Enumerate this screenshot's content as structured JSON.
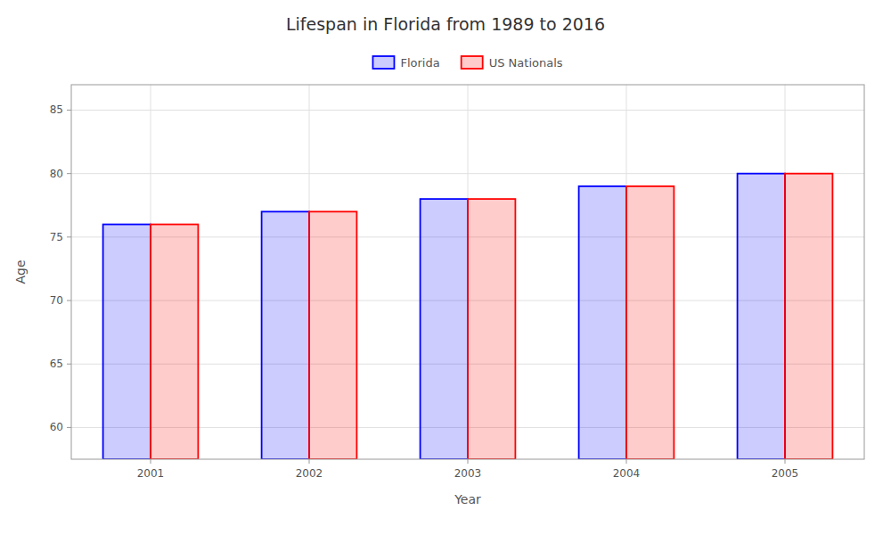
{
  "chart_data": {
    "type": "bar",
    "title": "Lifespan in Florida from 1989 to 2016",
    "xlabel": "Year",
    "ylabel": "Age",
    "categories": [
      "2001",
      "2002",
      "2003",
      "2004",
      "2005"
    ],
    "series": [
      {
        "name": "Florida",
        "color": "#0000ff",
        "values": [
          76.0,
          77.0,
          78.0,
          79.0,
          80.0
        ]
      },
      {
        "name": "US Nationals",
        "color": "#ff0000",
        "values": [
          76.0,
          77.0,
          78.0,
          79.0,
          80.0
        ]
      }
    ],
    "ylim": [
      57.5,
      87
    ],
    "yticks": [
      60,
      65,
      70,
      75,
      80,
      85
    ],
    "grid": true,
    "legend": "top"
  }
}
